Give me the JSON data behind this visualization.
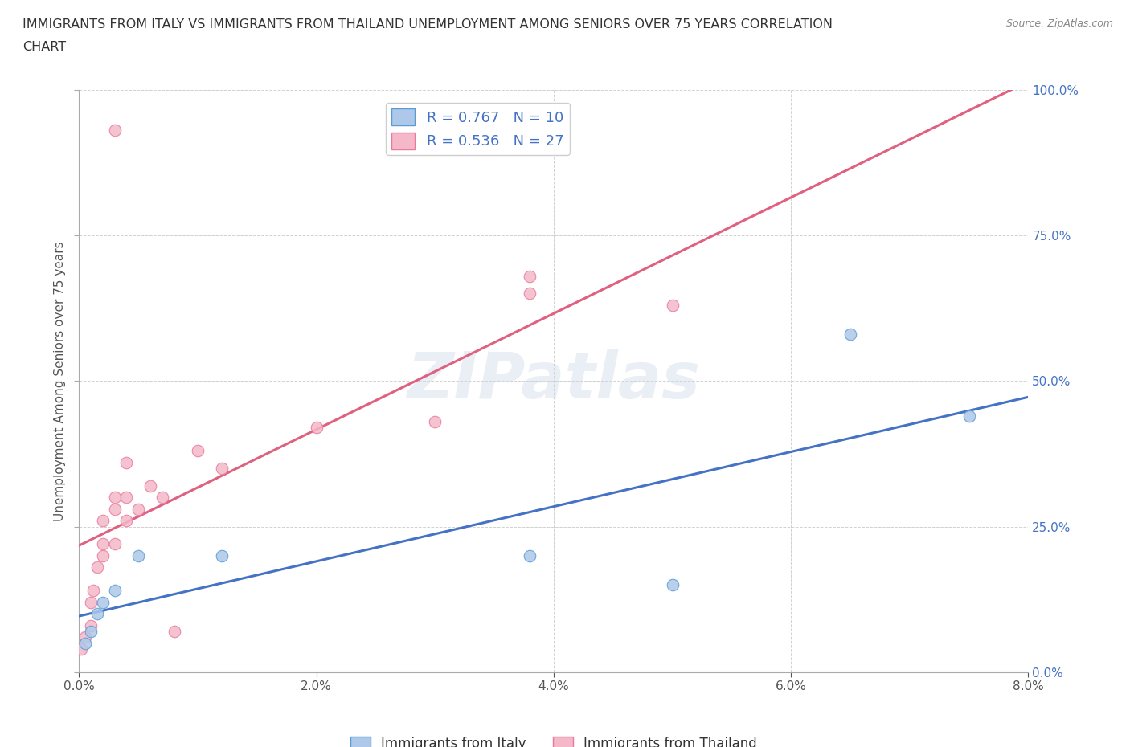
{
  "title_line1": "IMMIGRANTS FROM ITALY VS IMMIGRANTS FROM THAILAND UNEMPLOYMENT AMONG SENIORS OVER 75 YEARS CORRELATION",
  "title_line2": "CHART",
  "source": "Source: ZipAtlas.com",
  "ylabel": "Unemployment Among Seniors over 75 years",
  "legend_italy": "Immigrants from Italy",
  "legend_thailand": "Immigrants from Thailand",
  "xlim": [
    0.0,
    0.08
  ],
  "ylim": [
    0.0,
    1.0
  ],
  "xticks": [
    0.0,
    0.02,
    0.04,
    0.06,
    0.08
  ],
  "xtick_labels": [
    "0.0%",
    "2.0%",
    "4.0%",
    "6.0%",
    "8.0%"
  ],
  "yticks": [
    0.0,
    0.25,
    0.5,
    0.75,
    1.0
  ],
  "ytick_labels": [
    "0.0%",
    "25.0%",
    "50.0%",
    "75.0%",
    "100.0%"
  ],
  "italy_color": "#adc8e8",
  "thailand_color": "#f4b8c8",
  "italy_edge_color": "#5b9bd5",
  "thailand_edge_color": "#e87aa0",
  "italy_line_color": "#4472c4",
  "thailand_line_color": "#e06080",
  "right_tick_color": "#4472c4",
  "italy_scatter": [
    [
      0.0005,
      0.05
    ],
    [
      0.001,
      0.07
    ],
    [
      0.0015,
      0.1
    ],
    [
      0.002,
      0.12
    ],
    [
      0.003,
      0.14
    ],
    [
      0.005,
      0.2
    ],
    [
      0.012,
      0.2
    ],
    [
      0.038,
      0.2
    ],
    [
      0.05,
      0.15
    ],
    [
      0.065,
      0.58
    ],
    [
      0.075,
      0.44
    ]
  ],
  "thailand_scatter": [
    [
      0.0002,
      0.04
    ],
    [
      0.0005,
      0.06
    ],
    [
      0.001,
      0.08
    ],
    [
      0.001,
      0.12
    ],
    [
      0.0012,
      0.14
    ],
    [
      0.0015,
      0.18
    ],
    [
      0.002,
      0.2
    ],
    [
      0.002,
      0.22
    ],
    [
      0.002,
      0.26
    ],
    [
      0.003,
      0.22
    ],
    [
      0.003,
      0.28
    ],
    [
      0.003,
      0.3
    ],
    [
      0.004,
      0.26
    ],
    [
      0.004,
      0.3
    ],
    [
      0.004,
      0.36
    ],
    [
      0.005,
      0.28
    ],
    [
      0.006,
      0.32
    ],
    [
      0.007,
      0.3
    ],
    [
      0.008,
      0.07
    ],
    [
      0.01,
      0.38
    ],
    [
      0.012,
      0.35
    ],
    [
      0.02,
      0.42
    ],
    [
      0.03,
      0.43
    ],
    [
      0.038,
      0.65
    ],
    [
      0.038,
      0.68
    ],
    [
      0.05,
      0.63
    ],
    [
      0.003,
      0.93
    ]
  ],
  "watermark": "ZIPatlas",
  "background_color": "#ffffff",
  "grid_color": "#cccccc",
  "title_color": "#333333",
  "axis_label_color": "#555555",
  "tick_color": "#555555"
}
